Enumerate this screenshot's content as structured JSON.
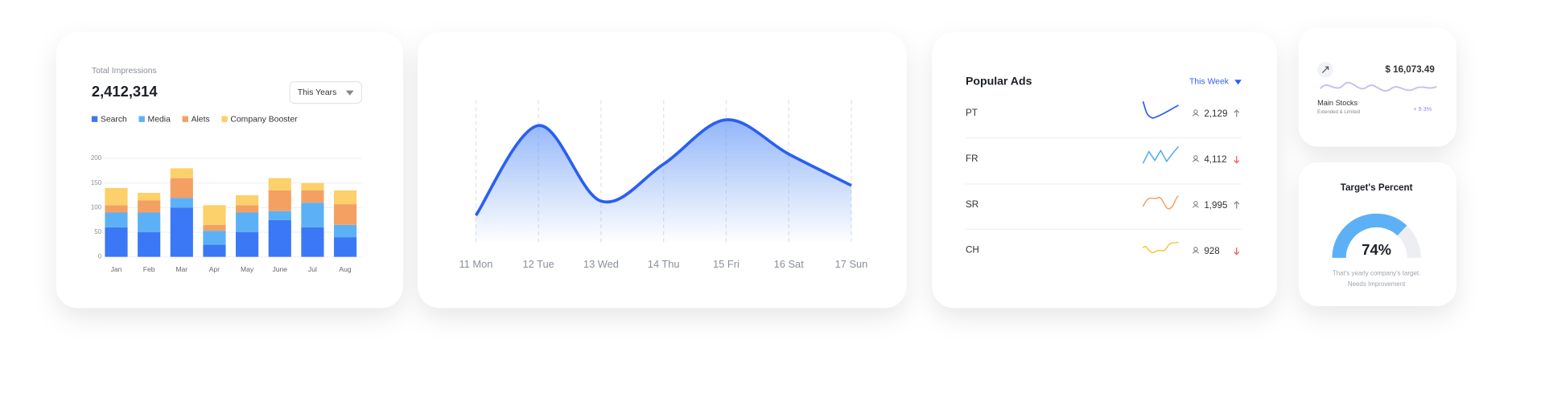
{
  "impressions": {
    "type": "bar",
    "stacked": true,
    "title": "Total Impressions",
    "total": "2,412,314",
    "dropdown": "This Years",
    "categories": [
      "Jan",
      "Feb",
      "Mar",
      "Apr",
      "May",
      "June",
      "Jul",
      "Aug"
    ],
    "series": [
      {
        "name": "Search",
        "color": "#3b78f5",
        "values": [
          60,
          50,
          100,
          25,
          50,
          75,
          60,
          40
        ]
      },
      {
        "name": "Media",
        "color": "#5cb1f6",
        "values": [
          30,
          40,
          20,
          28,
          40,
          18,
          50,
          25
        ]
      },
      {
        "name": "Alets",
        "color": "#f4a062",
        "values": [
          15,
          25,
          40,
          12,
          15,
          42,
          25,
          42
        ]
      },
      {
        "name": "Company Booster",
        "color": "#fcd06a",
        "values": [
          35,
          15,
          20,
          40,
          20,
          25,
          15,
          28
        ]
      }
    ],
    "ylim": [
      0,
      200
    ],
    "yticks": [
      0,
      50,
      100,
      150,
      200
    ],
    "grid": true
  },
  "line_chart": {
    "type": "line",
    "categories": [
      "11 Mon",
      "12 Tue",
      "13 Wed",
      "14 Thu",
      "15 Fri",
      "16 Sat",
      "17 Sun"
    ],
    "values": [
      18,
      81,
      28,
      54,
      85,
      61,
      39
    ],
    "ylim": [
      0,
      100
    ],
    "color": "#2a5ff0"
  },
  "popular_ads": {
    "title": "Popular Ads",
    "dropdown": "This Week",
    "rows": [
      {
        "code": "PT",
        "count": "2,129",
        "trend": "up"
      },
      {
        "code": "FR",
        "count": "4,112",
        "trend": "down"
      },
      {
        "code": "SR",
        "count": "1,995",
        "trend": "up"
      },
      {
        "code": "CH",
        "count": "928",
        "trend": "down"
      }
    ]
  },
  "stocks": {
    "amount": "$ 16,073.49",
    "name": "Main Stocks",
    "subtitle": "Extended & Limited",
    "change": "+ 9.3%"
  },
  "target": {
    "title": "Target's Percent",
    "value": 74,
    "value_label": "74%",
    "caption": [
      "That's yearly company's target.",
      "Needs Improvement"
    ]
  }
}
